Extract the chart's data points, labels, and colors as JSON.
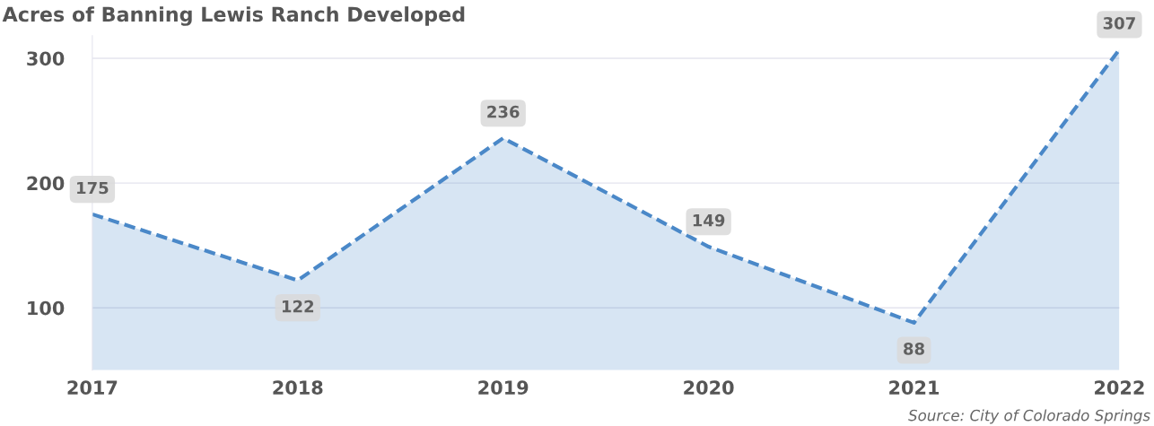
{
  "chart_data": {
    "type": "area",
    "title": "Acres of Banning Lewis Ranch Developed",
    "categories": [
      "2017",
      "2018",
      "2019",
      "2020",
      "2021",
      "2022"
    ],
    "series": [
      {
        "color": "#4a88c8",
        "values": [
          175,
          122,
          236,
          149,
          88,
          307
        ]
      }
    ],
    "ylim": [
      50,
      318
    ],
    "yticks": [
      100,
      200,
      300
    ],
    "grid": "y",
    "data_labels": true,
    "line_style": "dashed",
    "marker": "none",
    "annotations": [
      "Source: City of Colorado Springs"
    ]
  }
}
